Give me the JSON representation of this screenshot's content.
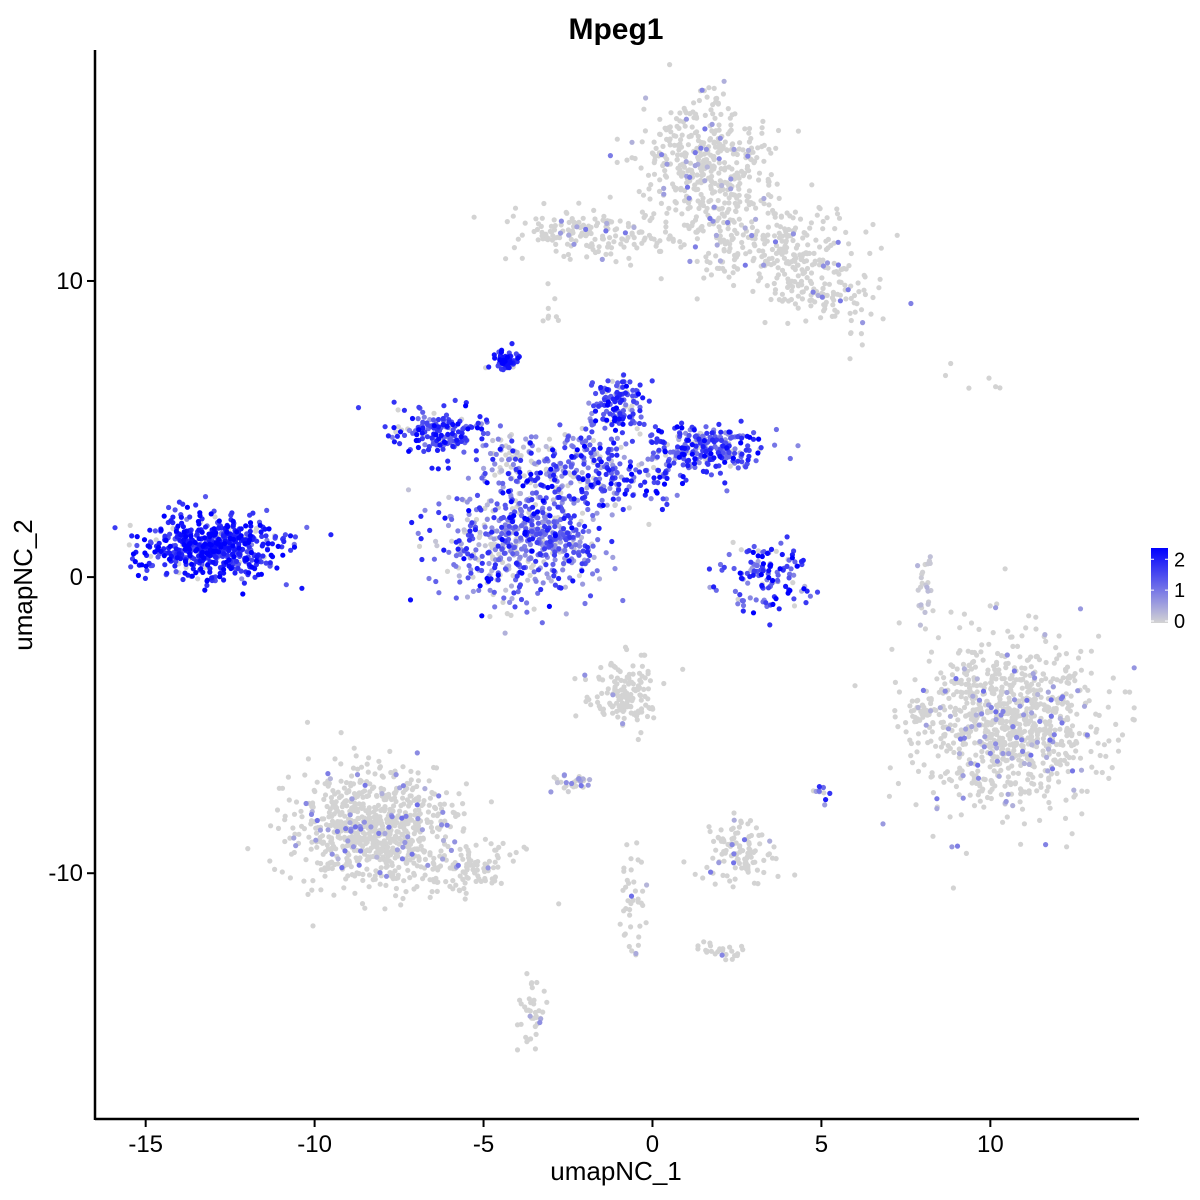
{
  "chart_data": {
    "type": "scatter",
    "title": "Mpeg1",
    "xlabel": "umapNC_1",
    "ylabel": "umapNC_2",
    "xlim": [
      -16.5,
      14.4
    ],
    "ylim": [
      -18.3,
      17.8
    ],
    "x_ticks": [
      -15,
      -10,
      -5,
      0,
      5,
      10
    ],
    "x_tick_labels": [
      "-15",
      "-10",
      "-5",
      "0",
      "5",
      "10"
    ],
    "y_ticks": [
      -10,
      0,
      10
    ],
    "y_tick_labels": [
      "-10",
      "0",
      "10"
    ],
    "grid": false,
    "legend": {
      "position": "right",
      "labels": [
        "2",
        "1",
        "0"
      ],
      "values": [
        2,
        1,
        0
      ],
      "color_low": "#d3d3d3",
      "color_high": "#0000ff",
      "max_value": 2.3
    },
    "clusters": [
      {
        "cx": -13.0,
        "cy": 1.0,
        "sx": 1.0,
        "sy": 0.55,
        "n": 600,
        "expr": 1.9,
        "spread": 0.25
      },
      {
        "cx": -6.3,
        "cy": 4.9,
        "sx": 0.7,
        "sy": 0.4,
        "n": 160,
        "expr": 1.6,
        "spread": 0.3
      },
      {
        "cx": -4.3,
        "cy": 7.3,
        "sx": 0.2,
        "sy": 0.18,
        "n": 70,
        "expr": 1.9,
        "spread": 0.2
      },
      {
        "cx": -4.0,
        "cy": 1.2,
        "sx": 1.2,
        "sy": 1.0,
        "n": 550,
        "expr": 1.0,
        "spread": 0.45
      },
      {
        "cx": -2.0,
        "cy": 3.5,
        "sx": 1.3,
        "sy": 0.7,
        "n": 300,
        "expr": 1.3,
        "spread": 0.4
      },
      {
        "cx": -1.0,
        "cy": 5.7,
        "sx": 0.4,
        "sy": 0.5,
        "n": 140,
        "expr": 1.5,
        "spread": 0.3
      },
      {
        "cx": 1.5,
        "cy": 4.3,
        "sx": 0.9,
        "sy": 0.45,
        "n": 260,
        "expr": 1.4,
        "spread": 0.35
      },
      {
        "cx": -2.5,
        "cy": 1.0,
        "sx": 0.6,
        "sy": 0.35,
        "n": 40,
        "expr": 1.2,
        "spread": 0.3
      },
      {
        "cx": 3.3,
        "cy": 0.0,
        "sx": 0.7,
        "sy": 0.6,
        "n": 130,
        "expr": 1.5,
        "spread": 0.35
      },
      {
        "cx": 1.6,
        "cy": 14.0,
        "sx": 0.9,
        "sy": 1.1,
        "n": 430,
        "expr": 0.0,
        "spread": 0.05
      },
      {
        "cx": -1.5,
        "cy": 11.6,
        "sx": 1.4,
        "sy": 0.4,
        "n": 170,
        "expr": 0.0,
        "spread": 0.05
      },
      {
        "cx": 3.5,
        "cy": 11.2,
        "sx": 1.2,
        "sy": 0.8,
        "n": 260,
        "expr": 0.0,
        "spread": 0.08
      },
      {
        "cx": 5.0,
        "cy": 9.7,
        "sx": 0.8,
        "sy": 0.7,
        "n": 120,
        "expr": 0.0,
        "spread": 0.05
      },
      {
        "cx": 10.6,
        "cy": -5.0,
        "sx": 1.4,
        "sy": 1.4,
        "n": 950,
        "expr": 0.0,
        "spread": 0.08
      },
      {
        "cx": -8.2,
        "cy": -8.5,
        "sx": 1.2,
        "sy": 1.0,
        "n": 800,
        "expr": 0.0,
        "spread": 0.08
      },
      {
        "cx": -5.5,
        "cy": -9.8,
        "sx": 0.8,
        "sy": 0.4,
        "n": 100,
        "expr": 0.0,
        "spread": 0.05
      },
      {
        "cx": -0.8,
        "cy": -4.0,
        "sx": 0.5,
        "sy": 0.6,
        "n": 150,
        "expr": 0.0,
        "spread": 0.08
      },
      {
        "cx": 2.5,
        "cy": -9.3,
        "sx": 0.5,
        "sy": 0.5,
        "n": 110,
        "expr": 0.0,
        "spread": 0.08
      },
      {
        "cx": -2.4,
        "cy": -6.9,
        "sx": 0.3,
        "sy": 0.15,
        "n": 30,
        "expr": 0.2,
        "spread": 0.3
      },
      {
        "cx": -3.6,
        "cy": -14.7,
        "sx": 0.2,
        "sy": 0.6,
        "n": 40,
        "expr": 0.0,
        "spread": 0.05
      },
      {
        "cx": -0.6,
        "cy": -11.0,
        "sx": 0.2,
        "sy": 0.8,
        "n": 40,
        "expr": 0.0,
        "spread": 0.05
      },
      {
        "cx": 2.0,
        "cy": -12.6,
        "sx": 0.4,
        "sy": 0.15,
        "n": 25,
        "expr": 0.0,
        "spread": 0.05
      },
      {
        "cx": 8.1,
        "cy": -0.2,
        "sx": 0.15,
        "sy": 0.6,
        "n": 25,
        "expr": 0.1,
        "spread": 0.1
      },
      {
        "cx": 8.0,
        "cy": -4.5,
        "sx": 0.2,
        "sy": 0.2,
        "n": 30,
        "expr": 0.0,
        "spread": 0.05
      },
      {
        "cx": 5.0,
        "cy": -7.3,
        "sx": 0.1,
        "sy": 0.15,
        "n": 10,
        "expr": 0.8,
        "spread": 0.5
      },
      {
        "cx": -3.0,
        "cy": 11.6,
        "sx": 0.2,
        "sy": 0.1,
        "n": 10,
        "expr": 0.0,
        "spread": 0.05
      },
      {
        "cx": -3.0,
        "cy": 9.1,
        "sx": 0.15,
        "sy": 0.3,
        "n": 8,
        "expr": 0.0,
        "spread": 0.05
      },
      {
        "cx": 9.5,
        "cy": 6.7,
        "sx": 0.5,
        "sy": 0.2,
        "n": 6,
        "expr": 0.0,
        "spread": 0.05
      },
      {
        "cx": -4.0,
        "cy": 4.0,
        "sx": 0.5,
        "sy": 0.4,
        "n": 60,
        "expr": 0.3,
        "spread": 0.3
      }
    ]
  }
}
